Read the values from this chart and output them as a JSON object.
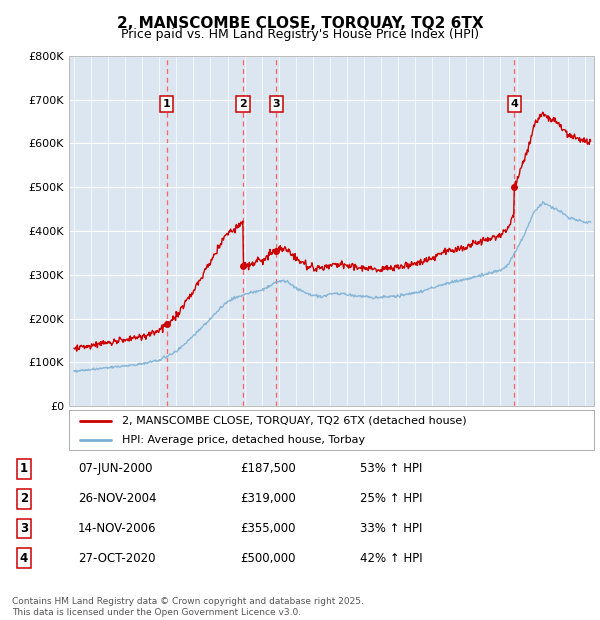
{
  "title": "2, MANSCOMBE CLOSE, TORQUAY, TQ2 6TX",
  "subtitle": "Price paid vs. HM Land Registry's House Price Index (HPI)",
  "title_fontsize": 11,
  "subtitle_fontsize": 9.5,
  "bg_color": "#dce6f1",
  "fig_bg_color": "#ffffff",
  "ylim": [
    0,
    800000
  ],
  "yticks": [
    0,
    100000,
    200000,
    300000,
    400000,
    500000,
    600000,
    700000,
    800000
  ],
  "ytick_labels": [
    "£0",
    "£100K",
    "£200K",
    "£300K",
    "£400K",
    "£500K",
    "£600K",
    "£700K",
    "£800K"
  ],
  "xlim_start": 1994.7,
  "xlim_end": 2025.5,
  "transactions": [
    {
      "num": 1,
      "date": "07-JUN-2000",
      "price": 187500,
      "pct": "53%",
      "year": 2000.44
    },
    {
      "num": 2,
      "date": "26-NOV-2004",
      "price": 319000,
      "pct": "25%",
      "year": 2004.9
    },
    {
      "num": 3,
      "date": "14-NOV-2006",
      "price": 355000,
      "pct": "33%",
      "year": 2006.87
    },
    {
      "num": 4,
      "date": "27-OCT-2020",
      "price": 500000,
      "pct": "42%",
      "year": 2020.82
    }
  ],
  "legend_labels": [
    "2, MANSCOMBE CLOSE, TORQUAY, TQ2 6TX (detached house)",
    "HPI: Average price, detached house, Torbay"
  ],
  "legend_colors": [
    "#cc0000",
    "#7aafd4"
  ],
  "footer": "Contains HM Land Registry data © Crown copyright and database right 2025.\nThis data is licensed under the Open Government Licence v3.0.",
  "red_line_color": "#cc0000",
  "blue_line_color": "#7aafd4",
  "dashed_line_color": "#ff6666",
  "marker_y": 690000
}
